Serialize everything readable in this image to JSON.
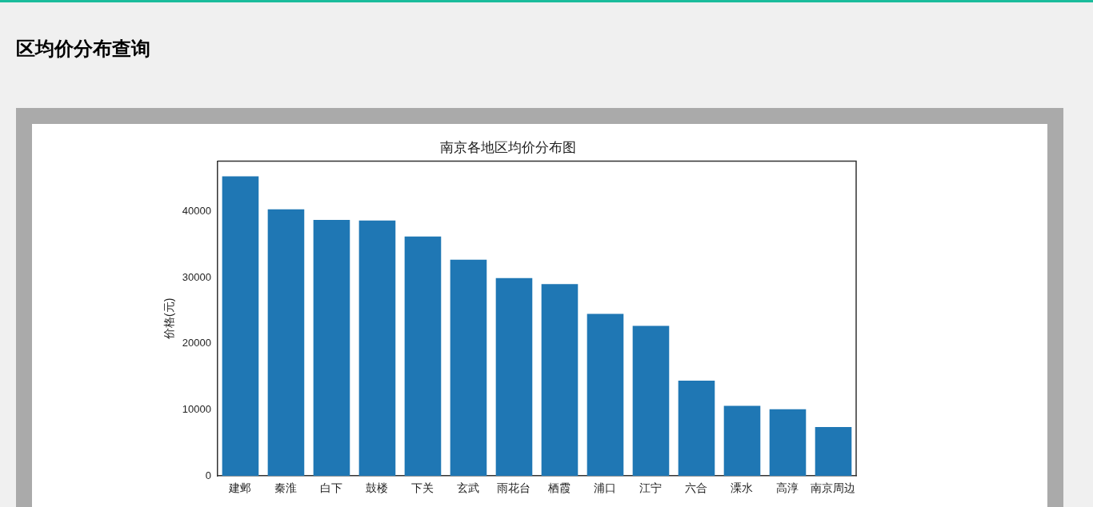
{
  "chart_data": {
    "type": "bar",
    "title": "南京各地区均价分布图",
    "ylabel": "价格(元)",
    "categories": [
      "建邺",
      "秦淮",
      "白下",
      "鼓楼",
      "下关",
      "玄武",
      "雨花台",
      "栖霞",
      "浦口",
      "江宁",
      "六合",
      "溧水",
      "高淳",
      "南京周边"
    ],
    "values": [
      45300,
      40300,
      38700,
      38600,
      36200,
      32700,
      29900,
      29000,
      24500,
      22700,
      14400,
      10600,
      10100,
      7400
    ],
    "color": "#1f77b4",
    "annotations": [
      "区均价分布查询"
    ],
    "ylim": [
      0,
      47600
    ],
    "yticks": [
      0,
      10000,
      20000,
      30000,
      40000
    ],
    "grid": false,
    "legend": false
  }
}
